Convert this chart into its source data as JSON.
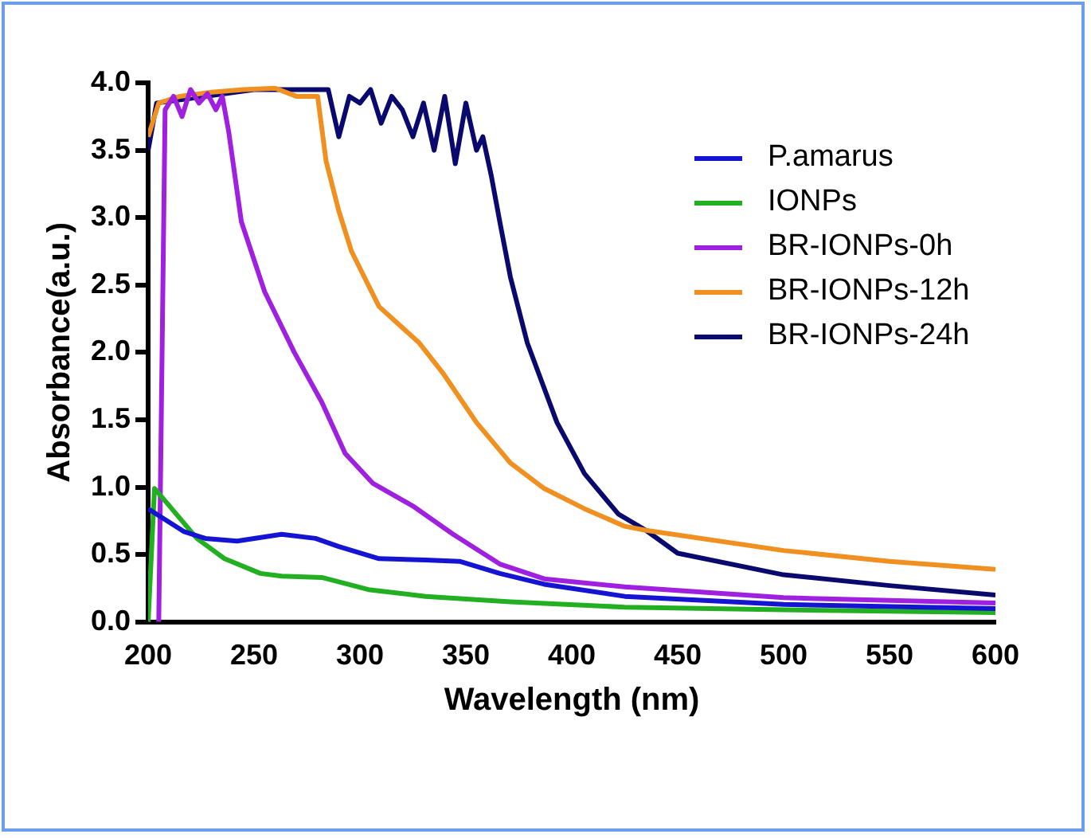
{
  "chart_data": {
    "type": "line",
    "xlabel": "Wavelength (nm)",
    "ylabel": "Absorbance(a.u.)",
    "xlim": [
      200,
      600
    ],
    "xticks": [
      200,
      250,
      300,
      350,
      400,
      450,
      500,
      550,
      600
    ],
    "ylim": [
      0,
      4
    ],
    "yticks": [
      {
        "value": 0,
        "label": "0.0"
      },
      {
        "value": 0.5,
        "label": "0.5"
      },
      {
        "value": 1,
        "label": "1.0"
      },
      {
        "value": 1.5,
        "label": "1.5"
      },
      {
        "value": 2,
        "label": "2.0"
      },
      {
        "value": 2.5,
        "label": "2.5"
      },
      {
        "value": 3,
        "label": "3.0"
      },
      {
        "value": 3.5,
        "label": "3.5"
      },
      {
        "value": 4,
        "label": "4.0"
      }
    ],
    "grid": false,
    "legend": "top right",
    "marker": "none",
    "line_style": "solid",
    "series": [
      {
        "name": "P.amarus",
        "color": "#1414d2",
        "x": [
          200,
          217,
          227,
          242,
          263,
          279,
          290,
          309,
          331,
          347,
          366,
          387,
          425,
          500,
          600
        ],
        "values": [
          0.84,
          0.67,
          0.62,
          0.6,
          0.65,
          0.62,
          0.56,
          0.47,
          0.46,
          0.45,
          0.36,
          0.28,
          0.19,
          0.13,
          0.1
        ]
      },
      {
        "name": "IONPs",
        "color": "#22b022",
        "x": [
          200,
          203,
          209,
          223,
          236,
          253,
          263,
          282,
          304,
          331,
          371,
          425,
          500,
          600
        ],
        "values": [
          0,
          0.99,
          0.88,
          0.62,
          0.47,
          0.36,
          0.34,
          0.33,
          0.24,
          0.19,
          0.15,
          0.11,
          0.09,
          0.07
        ]
      },
      {
        "name": "BR-IONPs-0h",
        "color": "#a020e0",
        "x": [
          205,
          208,
          212,
          216,
          220,
          224,
          228,
          232,
          235,
          238,
          244,
          255,
          269,
          282,
          293,
          306,
          325,
          344,
          366,
          387,
          425,
          500,
          600
        ],
        "values": [
          0,
          3.8,
          3.9,
          3.75,
          3.95,
          3.85,
          3.92,
          3.8,
          3.9,
          3.64,
          2.97,
          2.45,
          2,
          1.63,
          1.25,
          1.03,
          0.86,
          0.65,
          0.43,
          0.32,
          0.26,
          0.18,
          0.14
        ]
      },
      {
        "name": "BR-IONPs-12h",
        "color": "#f09020",
        "x": [
          200,
          205,
          215,
          230,
          245,
          260,
          270,
          280,
          284,
          290,
          296,
          309,
          328,
          339,
          355,
          371,
          387,
          406,
          425,
          435,
          500,
          550,
          600
        ],
        "values": [
          3.6,
          3.85,
          3.9,
          3.93,
          3.95,
          3.96,
          3.9,
          3.9,
          3.42,
          3.05,
          2.75,
          2.34,
          2.07,
          1.85,
          1.48,
          1.18,
          0.99,
          0.84,
          0.71,
          0.68,
          0.53,
          0.45,
          0.39
        ]
      },
      {
        "name": "BR-IONPs-24h",
        "color": "#0a0a6e",
        "x": [
          200,
          204,
          250,
          285,
          290,
          295,
          300,
          305,
          310,
          315,
          320,
          325,
          330,
          335,
          340,
          345,
          350,
          355,
          358,
          362,
          366,
          371,
          379,
          393,
          406,
          422,
          435,
          450,
          500,
          550,
          600
        ],
        "values": [
          3.5,
          3.85,
          3.95,
          3.95,
          3.6,
          3.9,
          3.85,
          3.95,
          3.7,
          3.9,
          3.8,
          3.6,
          3.85,
          3.5,
          3.9,
          3.4,
          3.85,
          3.5,
          3.6,
          3.31,
          2.97,
          2.56,
          2.07,
          1.48,
          1.1,
          0.8,
          0.68,
          0.51,
          0.35,
          0.27,
          0.2
        ]
      }
    ]
  }
}
